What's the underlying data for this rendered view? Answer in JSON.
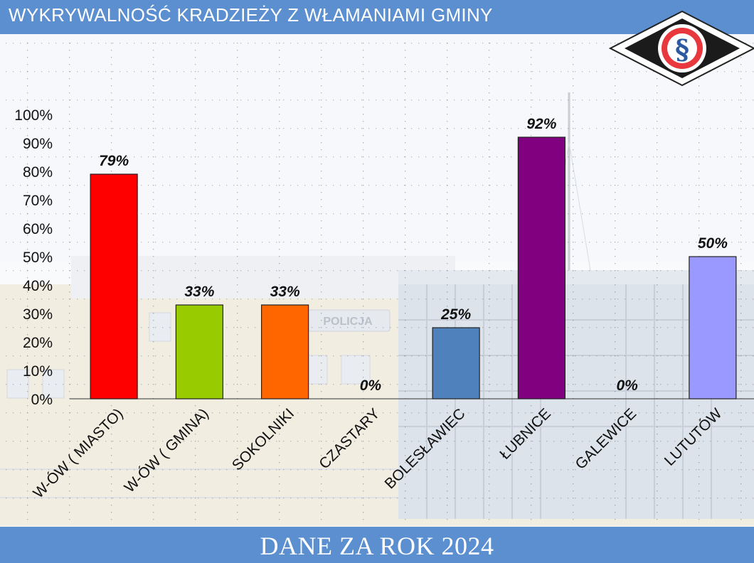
{
  "header": {
    "title": "WYKRYWALNOŚĆ KRADZIEŻY Z WŁAMANIAMI GMINY"
  },
  "footer": {
    "text": "DANE ZA ROK 2024"
  },
  "logo": {
    "icon": "police-section-sign-logo",
    "symbol": "§"
  },
  "background": {
    "sign_text": "POLICJA"
  },
  "colors": {
    "header": "#5b8fd0",
    "footer": "#5b8fd0"
  },
  "chart_data": {
    "type": "bar",
    "title": "WYKRYWALNOŚĆ KRADZIEŻY Z WŁAMANIAMI GMINY",
    "categories": [
      "W-ÓW ( MIASTO)",
      "W-ÓW ( GMINA)",
      "SOKOLNIKI",
      "CZASTARY",
      "BOLESŁAWIEC",
      "ŁUBNICE",
      "GALEWICE",
      "LUTUTÓW"
    ],
    "values": [
      79,
      33,
      33,
      0,
      25,
      92,
      0,
      50
    ],
    "data_labels": [
      "79%",
      "33%",
      "33%",
      "0%",
      "25%",
      "92%",
      "0%",
      "50%"
    ],
    "colors": [
      "#ff0000",
      "#99cc00",
      "#ff6600",
      "#ffffff",
      "#4f81bd",
      "#800080",
      "#ffffff",
      "#9999ff"
    ],
    "y_ticks": [
      "0%",
      "10%",
      "20%",
      "30%",
      "40%",
      "50%",
      "60%",
      "70%",
      "80%",
      "90%",
      "100%"
    ],
    "ylim": [
      0,
      100
    ],
    "grid": true,
    "legend": "none"
  }
}
